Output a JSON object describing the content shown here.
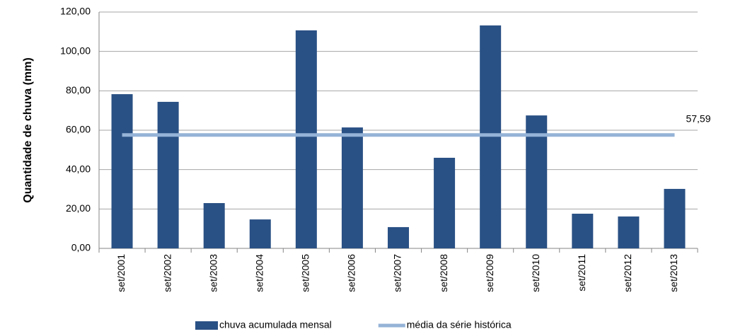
{
  "chart_data": {
    "type": "bar",
    "y_axis_label": "Quantidade de chuva (mm)",
    "categories": [
      "set/2001",
      "set/2002",
      "set/2003",
      "set/2004",
      "set/2005",
      "set/2006",
      "set/2007",
      "set/2008",
      "set/2009",
      "set/2010",
      "set/2011",
      "set/2012",
      "set/2013"
    ],
    "series": [
      {
        "name": "chuva acumulada mensal",
        "type": "bar",
        "color": "#2a5185",
        "values": [
          78.3,
          74.4,
          23.0,
          14.7,
          110.7,
          61.4,
          10.8,
          46.0,
          113.2,
          67.5,
          17.6,
          16.2,
          30.2
        ]
      },
      {
        "name": "média da série histórica",
        "type": "line",
        "color": "#95b3d7",
        "values": [
          57.59,
          57.59,
          57.59,
          57.59,
          57.59,
          57.59,
          57.59,
          57.59,
          57.59,
          57.59,
          57.59,
          57.59,
          57.59
        ],
        "value_labels": [
          null,
          null,
          null,
          null,
          null,
          null,
          null,
          null,
          null,
          null,
          null,
          null,
          "57,59"
        ]
      }
    ],
    "ylim": [
      0,
      120
    ],
    "yticks": [
      {
        "value": 0,
        "label": "0,00"
      },
      {
        "value": 20,
        "label": "20,00"
      },
      {
        "value": 40,
        "label": "40,00"
      },
      {
        "value": 60,
        "label": "60,00"
      },
      {
        "value": 80,
        "label": "80,00"
      },
      {
        "value": 100,
        "label": "100,00"
      },
      {
        "value": 120,
        "label": "120,00"
      }
    ],
    "grid": true,
    "legend": "bottom"
  }
}
